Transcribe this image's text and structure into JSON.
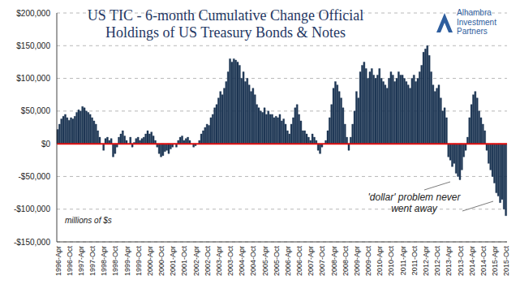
{
  "chart_data": {
    "type": "bar",
    "title": "US TIC - 6-month Cumulative Change Official\nHoldings of US Treasury Bonds & Notes",
    "logo": "Alhambra Investment Partners",
    "annotations": [
      "millions of $s",
      "'dollar' problem never went away"
    ],
    "reference_line": 0,
    "color": "#1c3553",
    "grid": true,
    "ylim": [
      -150000,
      200000
    ],
    "yticks": [
      {
        "value": -150000,
        "label": "-$150,000"
      },
      {
        "value": -100000,
        "label": "-$100,000"
      },
      {
        "value": -50000,
        "label": "-$50,000"
      },
      {
        "value": 0,
        "label": "$0"
      },
      {
        "value": 50000,
        "label": "$50,000"
      },
      {
        "value": 100000,
        "label": "$100,000"
      },
      {
        "value": 150000,
        "label": "$150,000"
      },
      {
        "value": 200000,
        "label": "$200,000"
      }
    ],
    "categories": [
      "1996-Apr",
      null,
      null,
      null,
      null,
      null,
      "1996-Oct",
      null,
      null,
      null,
      null,
      null,
      "1997-Apr",
      null,
      null,
      null,
      null,
      null,
      "1997-Oct",
      null,
      null,
      null,
      null,
      null,
      "1998-Apr",
      null,
      null,
      null,
      null,
      null,
      "1998-Oct",
      null,
      null,
      null,
      null,
      null,
      "1999-Apr",
      null,
      null,
      null,
      null,
      null,
      "1999-Oct",
      null,
      null,
      null,
      null,
      null,
      "2000-Apr",
      null,
      null,
      null,
      null,
      null,
      "2000-Oct",
      null,
      null,
      null,
      null,
      null,
      "2001-Apr",
      null,
      null,
      null,
      null,
      null,
      "2001-Oct",
      null,
      null,
      null,
      null,
      null,
      "2002-Apr",
      null,
      null,
      null,
      null,
      null,
      "2002-Oct",
      null,
      null,
      null,
      null,
      null,
      "2003-Apr",
      null,
      null,
      null,
      null,
      null,
      "2003-Oct",
      null,
      null,
      null,
      null,
      null,
      "2004-Apr",
      null,
      null,
      null,
      null,
      null,
      "2004-Oct",
      null,
      null,
      null,
      null,
      null,
      "2005-Apr",
      null,
      null,
      null,
      null,
      null,
      "2005-Oct",
      null,
      null,
      null,
      null,
      null,
      "2006-Apr",
      null,
      null,
      null,
      null,
      null,
      "2006-Oct",
      null,
      null,
      null,
      null,
      null,
      "2007-Apr",
      null,
      null,
      null,
      null,
      null,
      "2007-Oct",
      null,
      null,
      null,
      null,
      null,
      "2008-Apr",
      null,
      null,
      null,
      null,
      null,
      "2008-Oct",
      null,
      null,
      null,
      null,
      null,
      "2009-Apr",
      null,
      null,
      null,
      null,
      null,
      "2009-Oct",
      null,
      null,
      null,
      null,
      null,
      "2010-Apr",
      null,
      null,
      null,
      null,
      null,
      "2010-Oct",
      null,
      null,
      null,
      null,
      null,
      "2011-Apr",
      null,
      null,
      null,
      null,
      null,
      "2011-Oct",
      null,
      null,
      null,
      null,
      null,
      "2012-Apr",
      null,
      null,
      null,
      null,
      null,
      "2012-Oct",
      null,
      null,
      null,
      null,
      null,
      "2013-Apr",
      null,
      null,
      null,
      null,
      null,
      "2013-Oct",
      null,
      null,
      null,
      null,
      null,
      "2014-Apr",
      null,
      null,
      null,
      null,
      null,
      "2014-Oct",
      null,
      null,
      null,
      null,
      null,
      "2015-Apr",
      null,
      null,
      null,
      null,
      null,
      "2015-Oct"
    ],
    "values": [
      22000,
      30000,
      38000,
      42000,
      45000,
      40000,
      36000,
      40000,
      38000,
      42000,
      48000,
      52000,
      50000,
      57000,
      55000,
      50000,
      48000,
      45000,
      40000,
      35000,
      30000,
      20000,
      10000,
      0,
      -10000,
      8000,
      10000,
      5000,
      8000,
      -20000,
      -15000,
      -5000,
      10000,
      15000,
      20000,
      12000,
      5000,
      0,
      10000,
      -5000,
      2000,
      8000,
      10000,
      5000,
      8000,
      10000,
      15000,
      20000,
      15000,
      18000,
      12000,
      5000,
      -5000,
      -15000,
      -20000,
      -18000,
      -12000,
      -10000,
      -15000,
      -8000,
      -5000,
      0,
      -5000,
      5000,
      10000,
      12000,
      5000,
      8000,
      10000,
      5000,
      0,
      -5000,
      -3000,
      0,
      5000,
      15000,
      20000,
      25000,
      30000,
      28000,
      40000,
      45000,
      55000,
      60000,
      70000,
      80000,
      75000,
      85000,
      95000,
      110000,
      130000,
      125000,
      130000,
      128000,
      125000,
      120000,
      100000,
      110000,
      95000,
      100000,
      90000,
      80000,
      85000,
      75000,
      60000,
      55000,
      50000,
      48000,
      55000,
      45000,
      50000,
      45000,
      45000,
      40000,
      42000,
      40000,
      45000,
      35000,
      38000,
      30000,
      20000,
      15000,
      30000,
      40000,
      55000,
      60000,
      45000,
      35000,
      20000,
      20000,
      15000,
      10000,
      5000,
      15000,
      10000,
      5000,
      -10000,
      -15000,
      -5000,
      0,
      5000,
      20000,
      40000,
      60000,
      85000,
      95000,
      90000,
      80000,
      70000,
      55000,
      30000,
      10000,
      -10000,
      10000,
      30000,
      50000,
      80000,
      70000,
      110000,
      120000,
      125000,
      115000,
      100000,
      110000,
      115000,
      105000,
      100000,
      105000,
      115000,
      100000,
      95000,
      90000,
      85000,
      100000,
      110000,
      105000,
      95000,
      100000,
      110000,
      105000,
      105000,
      100000,
      95000,
      90000,
      85000,
      100000,
      105000,
      95000,
      100000,
      110000,
      120000,
      140000,
      145000,
      150000,
      135000,
      110000,
      90000,
      80000,
      85000,
      90000,
      70000,
      50000,
      55000,
      40000,
      -20000,
      -25000,
      -35000,
      -30000,
      -45000,
      -50000,
      -55000,
      -40000,
      -20000,
      -10000,
      10000,
      40000,
      60000,
      75000,
      80000,
      70000,
      50000,
      40000,
      30000,
      20000,
      -10000,
      -30000,
      -40000,
      -50000,
      -60000,
      -75000,
      -80000,
      -90000,
      -85000,
      -100000,
      -110000
    ]
  }
}
